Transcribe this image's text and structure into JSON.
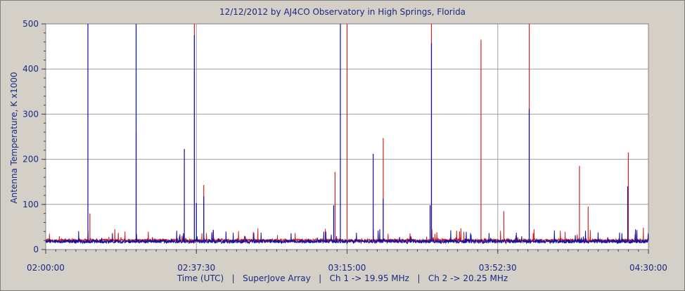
{
  "chart_data": {
    "type": "line",
    "title": "12/12/2012  by  AJ4CO Observatory  in  High Springs, Florida",
    "xlabel": "Time (UTC)   |   SuperJove Array   |   Ch 1 -> 19.95 MHz   |   Ch 2 -> 20.25 MHz",
    "ylabel": "Antenna Temperature, K x1000",
    "x_range": [
      "02:00:00",
      "04:30:00"
    ],
    "ylim": [
      0,
      500
    ],
    "y_ticks": [
      "0",
      "100",
      "200",
      "300",
      "400",
      "500"
    ],
    "x_ticks": [
      "02:00:00",
      "02:37:30",
      "03:15:00",
      "03:52:30",
      "04:30:00"
    ],
    "grid": true,
    "colors": {
      "ch1": "#d62020",
      "ch2": "#1010a0",
      "plot_bg": "#ffffff",
      "grid": "#a0a0a0"
    },
    "series": [
      {
        "name": "Ch 1 -> 19.95 MHz",
        "color": "#d62020",
        "baseline": 20,
        "spikes": [
          {
            "t": "02:11:00",
            "v": 80
          },
          {
            "t": "02:22:30",
            "v": 258
          },
          {
            "t": "02:37:00",
            "v": 500
          },
          {
            "t": "02:39:20",
            "v": 143
          },
          {
            "t": "03:12:00",
            "v": 172
          },
          {
            "t": "03:15:00",
            "v": 500
          },
          {
            "t": "03:24:00",
            "v": 247
          },
          {
            "t": "03:36:00",
            "v": 500
          },
          {
            "t": "03:48:20",
            "v": 465
          },
          {
            "t": "03:54:00",
            "v": 85
          },
          {
            "t": "04:00:20",
            "v": 500
          },
          {
            "t": "04:12:50",
            "v": 185
          },
          {
            "t": "04:15:00",
            "v": 95
          },
          {
            "t": "04:25:00",
            "v": 215
          }
        ]
      },
      {
        "name": "Ch 2 -> 20.25 MHz",
        "color": "#1010a0",
        "baseline": 18,
        "spikes": [
          {
            "t": "02:10:30",
            "v": 500
          },
          {
            "t": "02:22:30",
            "v": 500
          },
          {
            "t": "02:34:30",
            "v": 223
          },
          {
            "t": "02:37:00",
            "v": 475
          },
          {
            "t": "02:37:30",
            "v": 103
          },
          {
            "t": "02:39:20",
            "v": 118
          },
          {
            "t": "03:11:40",
            "v": 98
          },
          {
            "t": "03:13:20",
            "v": 500
          },
          {
            "t": "03:21:30",
            "v": 212
          },
          {
            "t": "03:24:00",
            "v": 113
          },
          {
            "t": "03:35:40",
            "v": 98
          },
          {
            "t": "03:36:00",
            "v": 457
          },
          {
            "t": "04:00:20",
            "v": 312
          },
          {
            "t": "04:24:50",
            "v": 140
          }
        ]
      }
    ]
  }
}
